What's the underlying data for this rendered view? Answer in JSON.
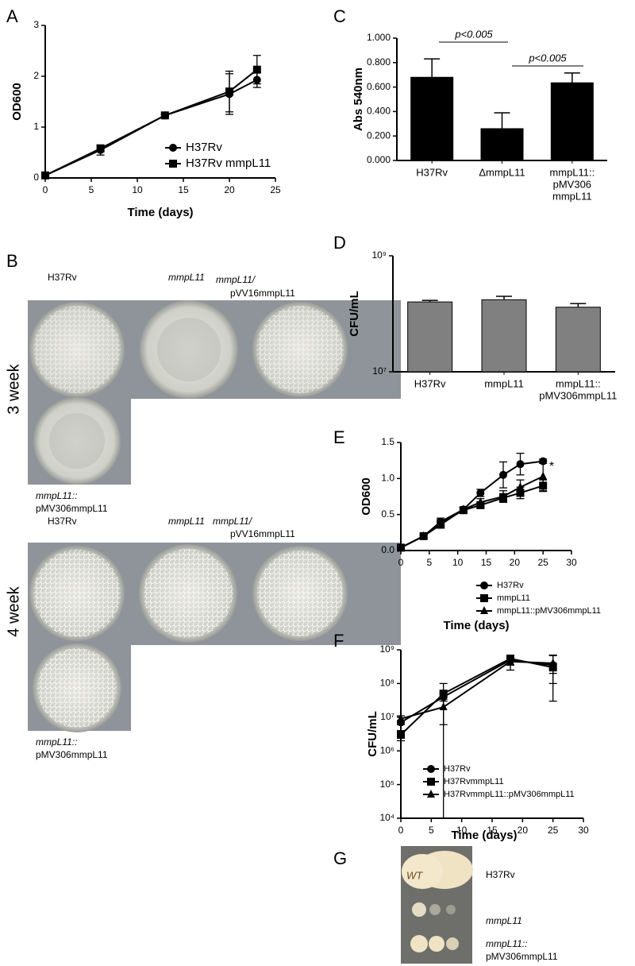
{
  "chart_data": [
    {
      "label": "A",
      "type": "line",
      "xlabel": "Time (days)",
      "ylabel": "OD600",
      "x": [
        0,
        6,
        13,
        20,
        23
      ],
      "xlim": [
        0,
        25
      ],
      "xticks": [
        0,
        5,
        10,
        15,
        20,
        25
      ],
      "ylim": [
        0,
        3
      ],
      "yticks": [
        0,
        1,
        2,
        3
      ],
      "series": [
        {
          "name": "H37Rv",
          "marker": "circle",
          "color": "#000000",
          "values": [
            0.05,
            0.55,
            1.23,
            1.65,
            1.93
          ],
          "errors": [
            0.02,
            0.1,
            0.03,
            0.4,
            0.15
          ]
        },
        {
          "name": "H37Rv mmpL11",
          "marker": "square",
          "color": "#000000",
          "values": [
            0.05,
            0.58,
            1.23,
            1.7,
            2.13
          ],
          "errors": [
            0.02,
            0.06,
            0.03,
            0.4,
            0.28
          ]
        }
      ]
    },
    {
      "label": "C",
      "type": "bar",
      "ylabel": "Abs 540nm",
      "color": "#000000",
      "categories": [
        [
          "H37Rv"
        ],
        [
          "ΔmmpL11"
        ],
        [
          "mmpL11::",
          "pMV306",
          "mmpL11"
        ]
      ],
      "values": [
        0.68,
        0.26,
        0.635
      ],
      "errors": [
        0.15,
        0.13,
        0.08
      ],
      "ylim": [
        0,
        1
      ],
      "yticks": [
        {
          "value": 0,
          "label": "0.000"
        },
        {
          "value": 0.2,
          "label": "0.200"
        },
        {
          "value": 0.4,
          "label": "0.400"
        },
        {
          "value": 0.6,
          "label": "0.600"
        },
        {
          "value": 0.8,
          "label": "0.800"
        },
        {
          "value": 1,
          "label": "1.000"
        }
      ],
      "annotations": [
        {
          "text": "p<0.005"
        },
        {
          "text": "p<0.005"
        }
      ]
    },
    {
      "label": "D",
      "type": "bar",
      "ylabel": "CFU/mL",
      "color": "#808080",
      "log": true,
      "categories": [
        [
          "H37Rv"
        ],
        [
          "mmpL11"
        ],
        [
          "mmpL11::",
          "pMV306mmpL11"
        ]
      ],
      "values": [
        160000000,
        175000000,
        130000000
      ],
      "errors": [
        10000000,
        25000000,
        20000000
      ],
      "ylim": [
        10000000,
        1000000000
      ],
      "yticks": [
        {
          "value": 10000000,
          "label": "10⁷"
        },
        {
          "value": 1000000000,
          "label": "10⁹"
        }
      ]
    },
    {
      "label": "E",
      "type": "line",
      "xlabel": "Time (days)",
      "ylabel": "OD600",
      "x": [
        0,
        4,
        7,
        11,
        14,
        18,
        21,
        25
      ],
      "xlim": [
        0,
        30
      ],
      "xticks": [
        0,
        5,
        10,
        15,
        20,
        25,
        30
      ],
      "ylim": [
        0,
        1.5
      ],
      "yticks": [
        {
          "value": 0,
          "label": "0.0"
        },
        {
          "value": 0.5,
          "label": "0.5"
        },
        {
          "value": 1,
          "label": "1.0"
        },
        {
          "value": 1.5,
          "label": "1.5"
        }
      ],
      "annotations": [
        {
          "text": "*"
        }
      ],
      "series": [
        {
          "name": "H37Rv",
          "marker": "circle",
          "color": "#000000",
          "values": [
            0.04,
            0.2,
            0.4,
            0.57,
            0.8,
            1.05,
            1.2,
            1.24
          ],
          "errors": [
            0.01,
            0.03,
            0.05,
            0.03,
            0.05,
            0.18,
            0.15,
            0.03
          ]
        },
        {
          "name": "mmpL11",
          "marker": "square",
          "color": "#000000",
          "values": [
            0.04,
            0.2,
            0.38,
            0.56,
            0.63,
            0.73,
            0.8,
            0.9
          ],
          "errors": [
            0.01,
            0.02,
            0.05,
            0.03,
            0.04,
            0.06,
            0.08,
            0.08
          ]
        },
        {
          "name": "mmpL11::pMV306mmpL11",
          "marker": "triangle",
          "color": "#000000",
          "values": [
            0.04,
            0.2,
            0.36,
            0.57,
            0.67,
            0.75,
            0.88,
            1.03
          ],
          "errors": [
            0.01,
            0.03,
            0.05,
            0.03,
            0.05,
            0.08,
            0.1,
            0.2
          ]
        }
      ]
    },
    {
      "label": "F",
      "type": "line",
      "xlabel": "Time (days)",
      "ylabel": "CFU/mL",
      "log": true,
      "x": [
        0,
        7,
        18,
        25
      ],
      "xlim": [
        0,
        30
      ],
      "xticks": [
        0,
        5,
        10,
        15,
        20,
        25,
        30
      ],
      "ylim": [
        10000,
        1000000000
      ],
      "yticks": [
        {
          "value": 10000,
          "label": "10⁴"
        },
        {
          "value": 100000,
          "label": "10⁵"
        },
        {
          "value": 1000000,
          "label": "10⁶"
        },
        {
          "value": 10000000,
          "label": "10⁷"
        },
        {
          "value": 100000000,
          "label": "10⁸"
        },
        {
          "value": 1000000000,
          "label": "10⁹"
        }
      ],
      "series": [
        {
          "name": "H37Rv",
          "marker": "circle",
          "color": "#000000",
          "values": [
            7000000,
            40000000,
            500000000,
            350000000
          ],
          "errors": [
            1000000,
            10000000,
            150000000,
            320000000
          ]
        },
        {
          "name": "H37RvmmpL11",
          "marker": "square",
          "color": "#000000",
          "values": [
            3000000,
            50000000,
            550000000,
            300000000
          ],
          "errors": [
            1000000,
            50000000,
            100000000,
            100000000
          ]
        },
        {
          "name": "H37RvmmpL11::pMV306mmpL11",
          "marker": "triangle",
          "color": "#000000",
          "values": [
            9000000,
            20000000,
            450000000,
            400000000
          ],
          "errors": [
            2000000,
            14000000,
            200000000,
            300000000
          ]
        }
      ]
    }
  ],
  "photos": {
    "B": {
      "label": "B",
      "week3": {
        "label": "3 week",
        "top": [
          "H37Rv",
          "mmpL11",
          "mmpL11/",
          "pVV16mmpL11"
        ],
        "bottom": [
          "mmpL11::",
          "pMV306mmpL11"
        ]
      },
      "week4": {
        "label": "4 week",
        "top": [
          "H37Rv",
          "mmpL11",
          "mmpL11/",
          "pVV16mmpL11"
        ],
        "bottom": [
          "mmpL11::",
          "pMV306mmpL11"
        ]
      }
    },
    "G": {
      "label": "G",
      "plate_text": "WT",
      "rows": [
        "H37Rv",
        "mmpL11",
        "mmpL11::",
        "pMV306mmpL11"
      ]
    }
  }
}
